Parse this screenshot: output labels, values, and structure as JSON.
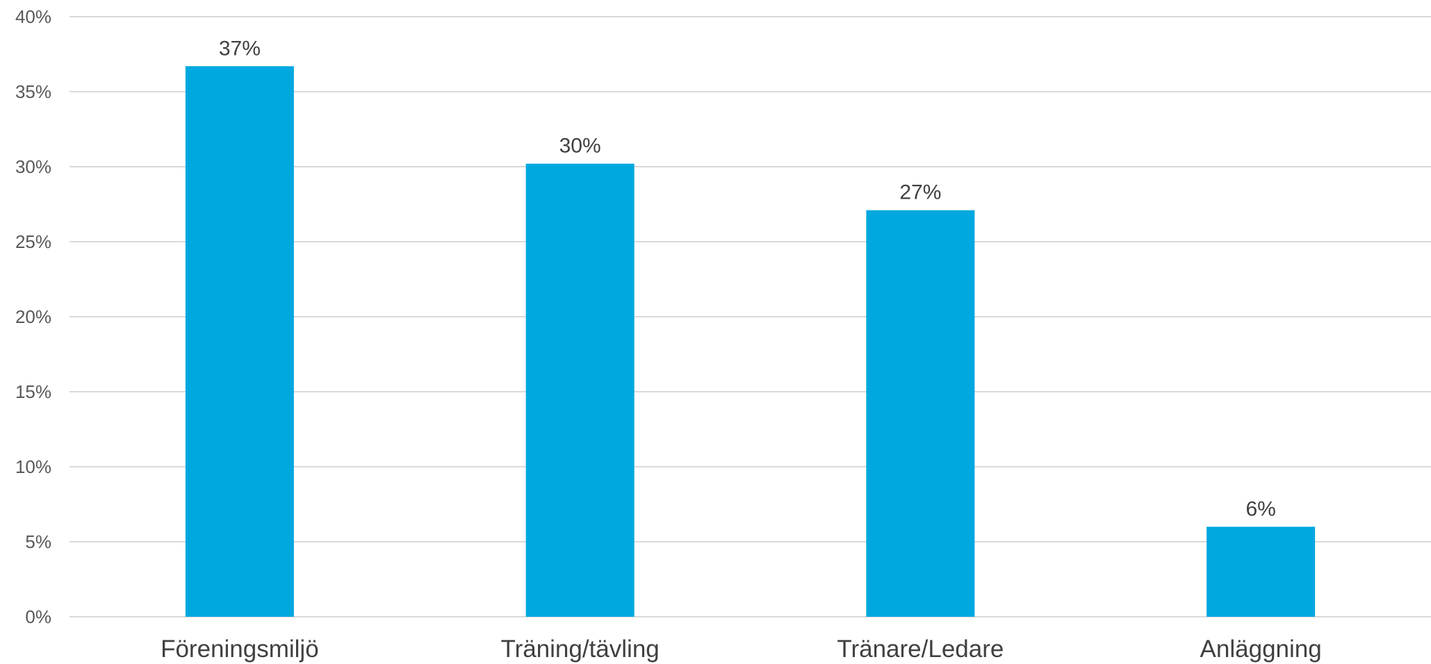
{
  "chart_data": {
    "type": "bar",
    "categories": [
      "Föreningsmiljö",
      "Träning/tävling",
      "Tränare/Ledare",
      "Anläggning"
    ],
    "values": [
      36.7,
      30.2,
      27.1,
      6.0
    ],
    "data_labels": [
      "37%",
      "30%",
      "27%",
      "6%"
    ],
    "title": "",
    "xlabel": "",
    "ylabel": "",
    "ylim": [
      0,
      40
    ],
    "yticks": [
      "0%",
      "5%",
      "10%",
      "15%",
      "20%",
      "25%",
      "30%",
      "35%",
      "40%"
    ],
    "grid": true,
    "legend": "none",
    "bar_color": "#00a8e0"
  }
}
